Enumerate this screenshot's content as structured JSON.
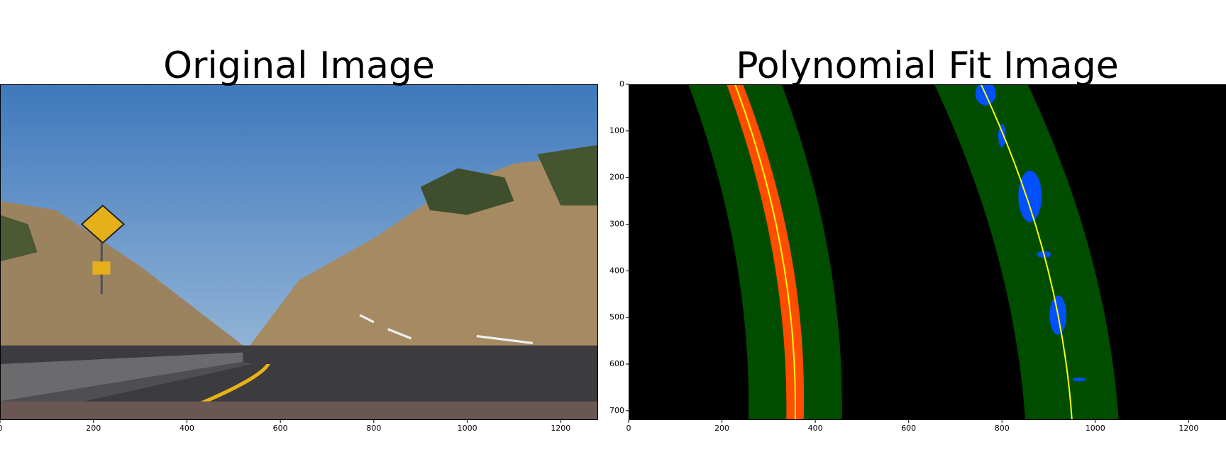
{
  "chart_data": [
    {
      "type": "image",
      "title": "Original Image",
      "xlim": [
        0,
        1280
      ],
      "ylim": [
        720,
        0
      ],
      "xticks": [
        0,
        200,
        400,
        600,
        800,
        1000,
        1200
      ]
    },
    {
      "type": "image",
      "title": "Polynomial Fit Image",
      "xlim": [
        0,
        1280
      ],
      "ylim": [
        720,
        0
      ],
      "xticks": [
        0,
        200,
        400,
        600,
        800,
        1000,
        1200
      ],
      "yticks": [
        0,
        100,
        200,
        300,
        400,
        500,
        600,
        700
      ]
    }
  ]
}
